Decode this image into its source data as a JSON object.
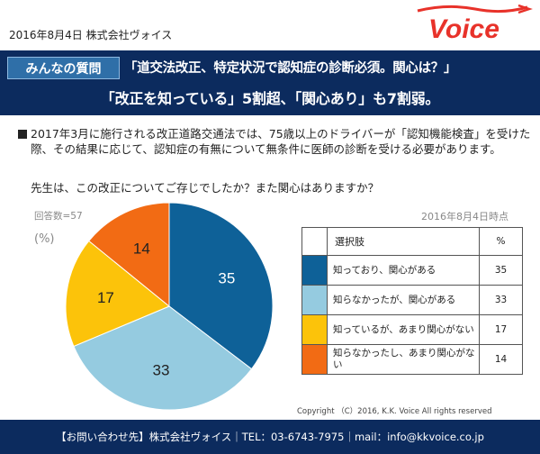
{
  "header": {
    "date_company": "2016年8月4日 株式会社ヴォイス",
    "logo_text": "Voice",
    "logo_color": "#e8322a"
  },
  "banner": {
    "tag": "みんなの質問",
    "headline1": "「道交法改正、特定状況で認知症の診断必須。関心は？」",
    "headline2": "「改正を知っている」5割超、「関心あり」も7割弱。",
    "bg_color": "#0c2b5e",
    "tag_color": "#2f6fa8"
  },
  "body": {
    "paragraph": "2017年3月に施行される改正道路交通法では、75歳以上のドライバーが「認知機能検査」を受けた際、その結果に応じて、認知症の有無について無条件に医師の診断を受ける必要があります。",
    "question": "先生は、この改正についてご存じでしたか？また関心はありますか？"
  },
  "chart_meta": {
    "respondents": "回答数=57",
    "unit": "(%)",
    "as_of": "2016年8月4日時点"
  },
  "legend": {
    "header_label": "選択肢",
    "header_value": "%"
  },
  "chart_data": {
    "type": "pie",
    "categories": [
      "知っており、関心がある",
      "知らなかったが、関心がある",
      "知っているが、あまり関心がない",
      "知らなかったし、あまり関心がない"
    ],
    "values": [
      35,
      33,
      17,
      14
    ],
    "colors": [
      "#0e6198",
      "#95cbe0",
      "#fcc30a",
      "#f26b14"
    ],
    "label_colors": [
      "#ffffff",
      "#222222",
      "#222222",
      "#222222"
    ],
    "start_angle_deg": 0,
    "direction": "clockwise"
  },
  "footer": {
    "copyright": "Copyright （C）2016, K.K. Voice All rights reserved",
    "contact": "【お問い合わせ先】株式会社ヴォイス｜TEL：03-6743-7975｜mail：info@kkvoice.co.jp"
  }
}
